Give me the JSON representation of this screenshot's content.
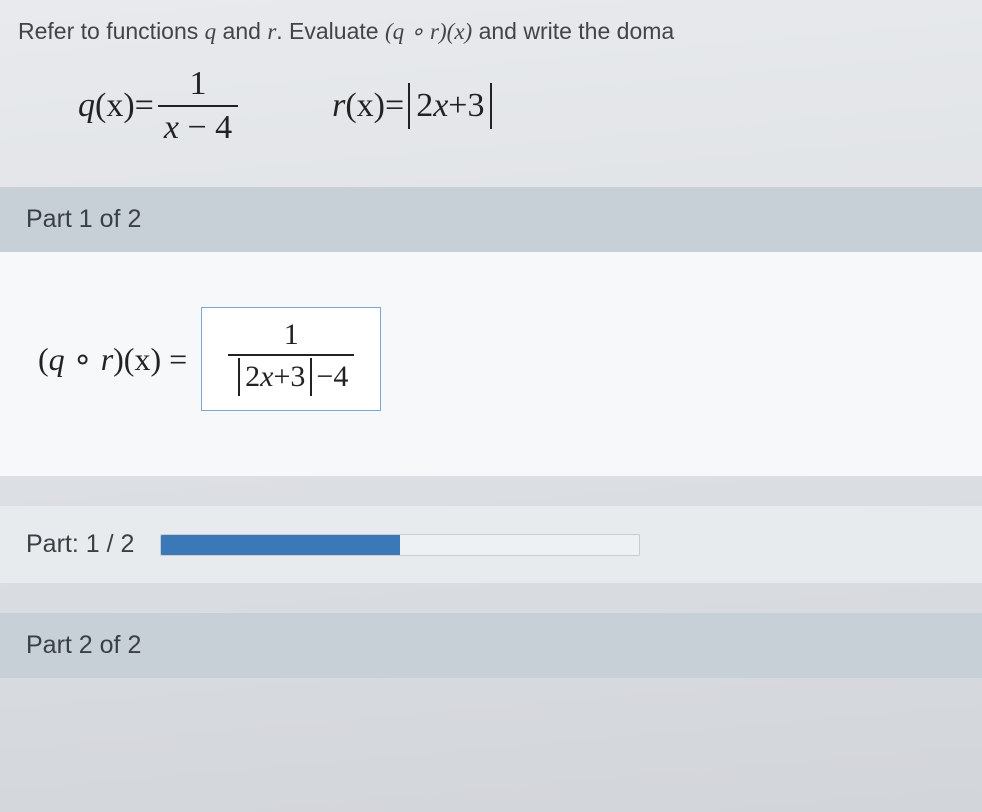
{
  "prompt": {
    "pre": "Refer to functions ",
    "var1": "q",
    "mid1": " and ",
    "var2": "r",
    "mid2": ". Evaluate ",
    "compL": "(",
    "compQ": "q",
    "compOp": " ∘ ",
    "compR": "r",
    "compClose": ")",
    "compX": "(x)",
    "post": " and write the doma"
  },
  "given": {
    "q": {
      "lhs_var": "q",
      "lhs_arg": "(x)",
      "eq": " = ",
      "num": "1",
      "den_l": "x",
      "den_op": " − ",
      "den_r": "4"
    },
    "r": {
      "lhs_var": "r",
      "lhs_arg": "(x)",
      "eq": " = ",
      "abs_l": "2",
      "abs_x": "x",
      "abs_op": " + ",
      "abs_r": "3"
    }
  },
  "part1": {
    "label": "Part 1 of 2"
  },
  "answer": {
    "lhs_open": "(",
    "lhs_q": "q",
    "lhs_op": " ∘ ",
    "lhs_r": "r",
    "lhs_close": ")",
    "lhs_x": "(x)",
    "eq": " = ",
    "num": "1",
    "den_abs_l": "2",
    "den_abs_x": "x",
    "den_abs_op": " + ",
    "den_abs_r": "3",
    "den_op": " − ",
    "den_r": "4"
  },
  "progress": {
    "label": "Part: 1 / 2",
    "percent": 50
  },
  "part2": {
    "label": "Part 2 of 2"
  },
  "colors": {
    "bar_bg": "#c7d0d6",
    "card_bg": "#f7f8f9",
    "box_border": "#7aa8d6",
    "progress_fill": "#3b78b8",
    "progress_track": "#eef1f3"
  }
}
